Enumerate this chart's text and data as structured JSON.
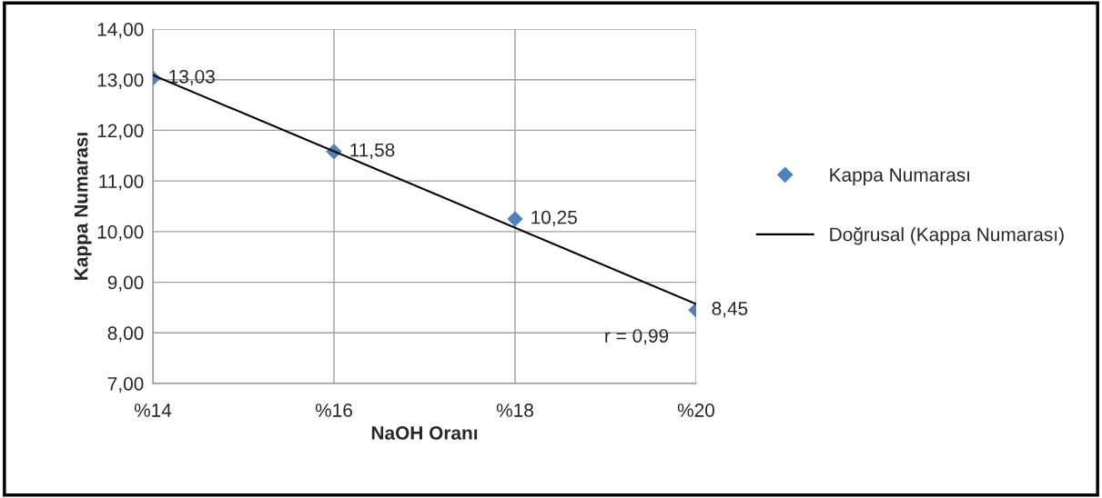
{
  "chart_data": {
    "type": "scatter",
    "xlabel": "NaOH Oranı",
    "ylabel": "Kappa Numarası",
    "categories": [
      "%14",
      "%16",
      "%18",
      "%20"
    ],
    "series": [
      {
        "name": "Kappa Numarası",
        "color": "#4f81bd",
        "marker": "diamond",
        "values": [
          13.03,
          11.58,
          10.25,
          8.45
        ],
        "value_labels": [
          "13,03",
          "11,58",
          "10,25",
          "8,45"
        ]
      },
      {
        "name": "Doğrusal (Kappa Numarası)",
        "type": "line",
        "color": "#000000",
        "line_style": "solid",
        "x": [
          "%14",
          "%20"
        ],
        "values": [
          13.09,
          8.57
        ]
      }
    ],
    "ylim": [
      7,
      14
    ],
    "yticks": [
      {
        "value": 7,
        "label": "7,00"
      },
      {
        "value": 8,
        "label": "8,00"
      },
      {
        "value": 9,
        "label": "9,00"
      },
      {
        "value": 10,
        "label": "10,00"
      },
      {
        "value": 11,
        "label": "11,00"
      },
      {
        "value": 12,
        "label": "12,00"
      },
      {
        "value": 13,
        "label": "13,00"
      },
      {
        "value": 14,
        "label": "14,00"
      }
    ],
    "annotations": [
      "r = 0,99"
    ],
    "grid": true,
    "legend": "right"
  }
}
